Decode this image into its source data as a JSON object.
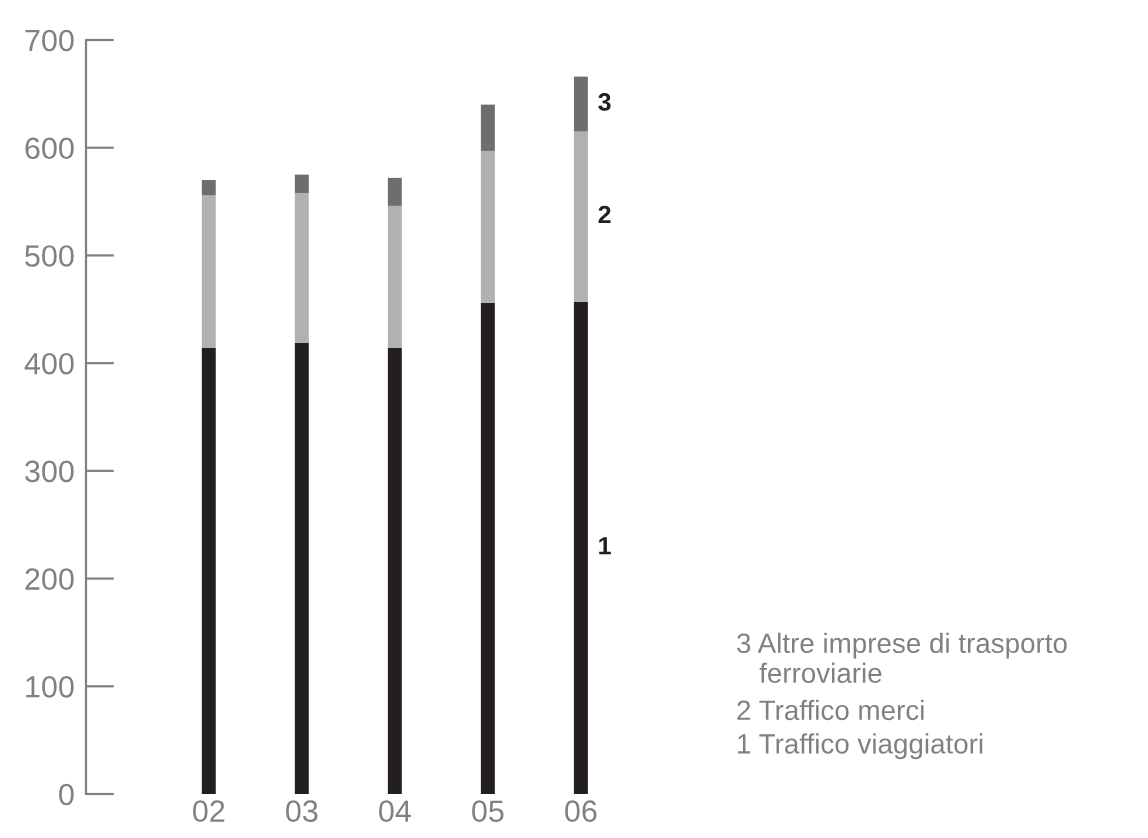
{
  "chart_data": {
    "type": "bar",
    "stacked": true,
    "categories": [
      "02",
      "03",
      "04",
      "05",
      "06"
    ],
    "series": [
      {
        "name": "1",
        "color": "#231f20",
        "values": [
          414,
          419,
          414,
          456,
          457
        ]
      },
      {
        "name": "2",
        "color": "#b1b1b3",
        "values": [
          142,
          139,
          132,
          141,
          158
        ]
      },
      {
        "name": "3",
        "color": "#6d6e70",
        "values": [
          14,
          17,
          26,
          43,
          51
        ]
      }
    ],
    "ylim": [
      0,
      700
    ],
    "yticks": [
      0,
      100,
      200,
      300,
      400,
      500,
      600,
      700
    ],
    "grid": false,
    "legend": false,
    "annotations": [
      "3 Altre imprese di trasporto\n   ferroviarie",
      "2 Traffico merci",
      "1 Traffico viaggiatori"
    ]
  }
}
